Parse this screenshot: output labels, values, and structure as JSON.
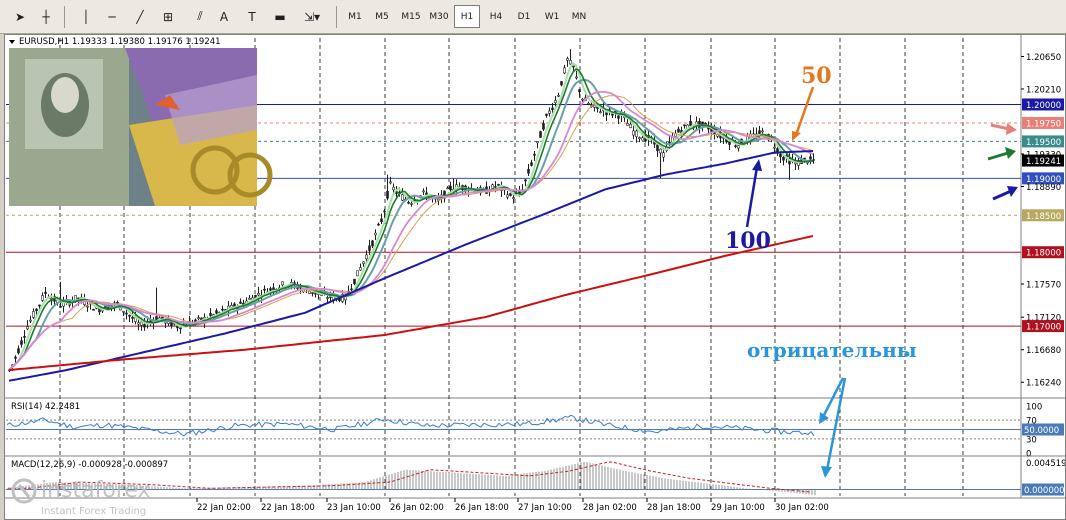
{
  "toolbar": {
    "tools": [
      {
        "name": "cursor-tool",
        "glyph": "➤"
      },
      {
        "name": "crosshair-tool",
        "glyph": "┼"
      },
      {
        "name": "vertical-line-tool",
        "glyph": "│"
      },
      {
        "name": "horizontal-line-tool",
        "glyph": "─"
      },
      {
        "name": "trendline-tool",
        "glyph": "╱"
      },
      {
        "name": "fibonacci-tool",
        "glyph": "⊞"
      },
      {
        "name": "equidistant-channel-tool",
        "glyph": "⫽"
      },
      {
        "name": "text-tool",
        "glyph": "A"
      },
      {
        "name": "text-label-tool",
        "glyph": "T"
      },
      {
        "name": "rectangle-tool",
        "glyph": "▬"
      },
      {
        "name": "arrows-tool",
        "glyph": "⇲▾"
      }
    ],
    "timeframes": [
      "M1",
      "M5",
      "M15",
      "M30",
      "H1",
      "H4",
      "D1",
      "W1",
      "MN"
    ],
    "active_timeframe": "H1"
  },
  "chart": {
    "symbol_header": "EURUSD,H1  1.19333 1.19380 1.19176 1.19241",
    "price_labels": [
      {
        "text": "1.20650",
        "style": "plain"
      },
      {
        "text": "1.20210",
        "style": "plain"
      },
      {
        "text": "1.20000",
        "style": "blue"
      },
      {
        "text": "1.19750",
        "style": "salmon"
      },
      {
        "text": "1.19500",
        "style": "teal"
      },
      {
        "text": "1.19330",
        "style": "plain"
      },
      {
        "text": "1.19241",
        "style": "black"
      },
      {
        "text": "1.19000",
        "style": "royal"
      },
      {
        "text": "1.18890",
        "style": "plain"
      },
      {
        "text": "1.18500",
        "style": "olive"
      },
      {
        "text": "1.18000",
        "style": "crimson"
      },
      {
        "text": "1.17570",
        "style": "plain"
      },
      {
        "text": "1.17120",
        "style": "plain"
      },
      {
        "text": "1.17000",
        "style": "crimson"
      },
      {
        "text": "1.16680",
        "style": "plain"
      },
      {
        "text": "1.16240",
        "style": "plain"
      }
    ],
    "time_labels": [
      "22 Jan 02:00",
      "22 Jan 18:00",
      "23 Jan 10:00",
      "26 Jan 02:00",
      "26 Jan 18:00",
      "27 Jan 10:00",
      "28 Jan 02:00",
      "28 Jan 18:00",
      "29 Jan 10:00",
      "30 Jan 02:00"
    ],
    "annotations": {
      "ma50": "50",
      "ma100": "100",
      "negative": "отрицательны"
    },
    "colors": {
      "orange": "#e8761c",
      "blue": "#1a1aa6",
      "green": "#1e7a2c",
      "salmon": "#e88078",
      "lightblue": "#2a96d8",
      "sma_red": "#cc1010",
      "sma_blue": "#1a1aa6",
      "teal": "#3a8c8c",
      "candle": "#202020"
    }
  },
  "rsi": {
    "header": "RSI(14) 42.2481",
    "levels": [
      "100",
      "70",
      "50.0000",
      "30",
      "0"
    ]
  },
  "macd": {
    "header": "MACD(12,26,9) -0.000928 -0.000897",
    "levels": [
      "0.004519",
      "0.000000"
    ]
  },
  "watermark": {
    "brand": "instaforex",
    "tagline": "Instant Forex Trading"
  }
}
